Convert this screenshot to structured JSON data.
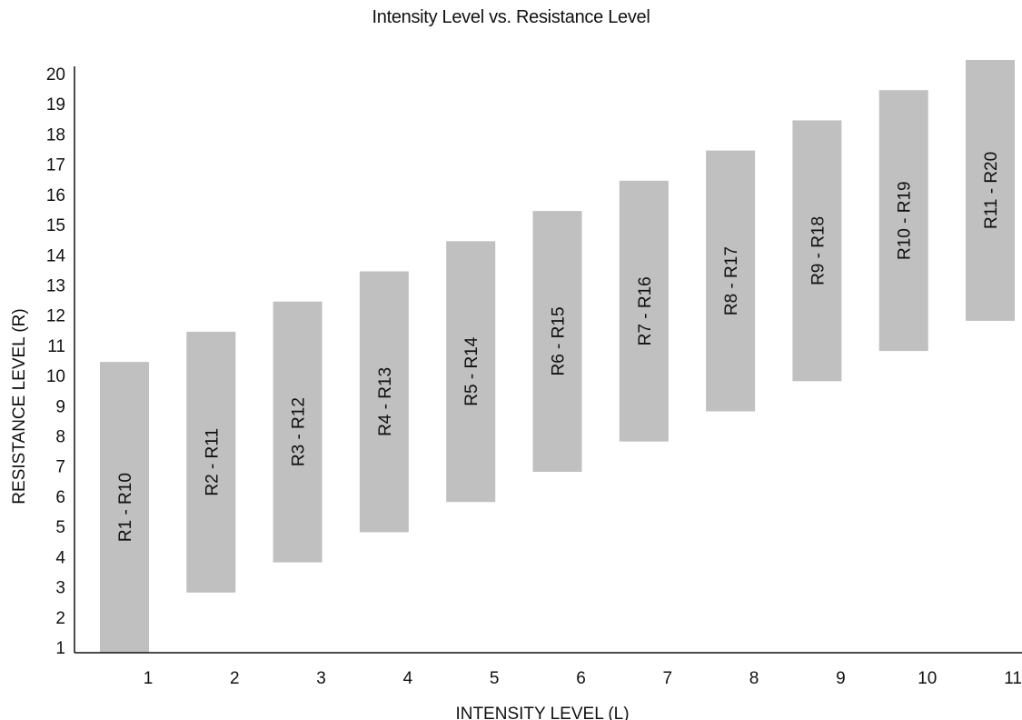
{
  "chart_data": {
    "type": "bar",
    "title": "Intensity Level vs. Resistance Level",
    "xlabel": "INTENSITY LEVEL (L)",
    "ylabel": "RESISTANCE LEVEL (R)",
    "categories": [
      "1",
      "2",
      "3",
      "4",
      "5",
      "6",
      "7",
      "8",
      "9",
      "10",
      "11"
    ],
    "ranges": [
      {
        "low": 1,
        "high": 10,
        "label": "R1 - R10"
      },
      {
        "low": 2,
        "high": 11,
        "label": "R2 - R11"
      },
      {
        "low": 3,
        "high": 12,
        "label": "R3 - R12"
      },
      {
        "low": 4,
        "high": 13,
        "label": "R4 - R13"
      },
      {
        "low": 5,
        "high": 14,
        "label": "R5 - R14"
      },
      {
        "low": 6,
        "high": 15,
        "label": "R6 - R15"
      },
      {
        "low": 7,
        "high": 16,
        "label": "R7 - R16"
      },
      {
        "low": 8,
        "high": 17,
        "label": "R8 - R17"
      },
      {
        "low": 9,
        "high": 18,
        "label": "R9 - R18"
      },
      {
        "low": 10,
        "high": 19,
        "label": "R10 - R19"
      },
      {
        "low": 11,
        "high": 20,
        "label": "R11 - R20"
      }
    ],
    "y_ticks": [
      "1",
      "2",
      "3",
      "4",
      "5",
      "6",
      "7",
      "8",
      "9",
      "10",
      "11",
      "12",
      "13",
      "14",
      "15",
      "16",
      "17",
      "18",
      "19",
      "20"
    ],
    "ylim": [
      1,
      20
    ],
    "grid": false,
    "legend": "none",
    "bar_color": "#c0c0c0",
    "axis_color": "#111111"
  }
}
